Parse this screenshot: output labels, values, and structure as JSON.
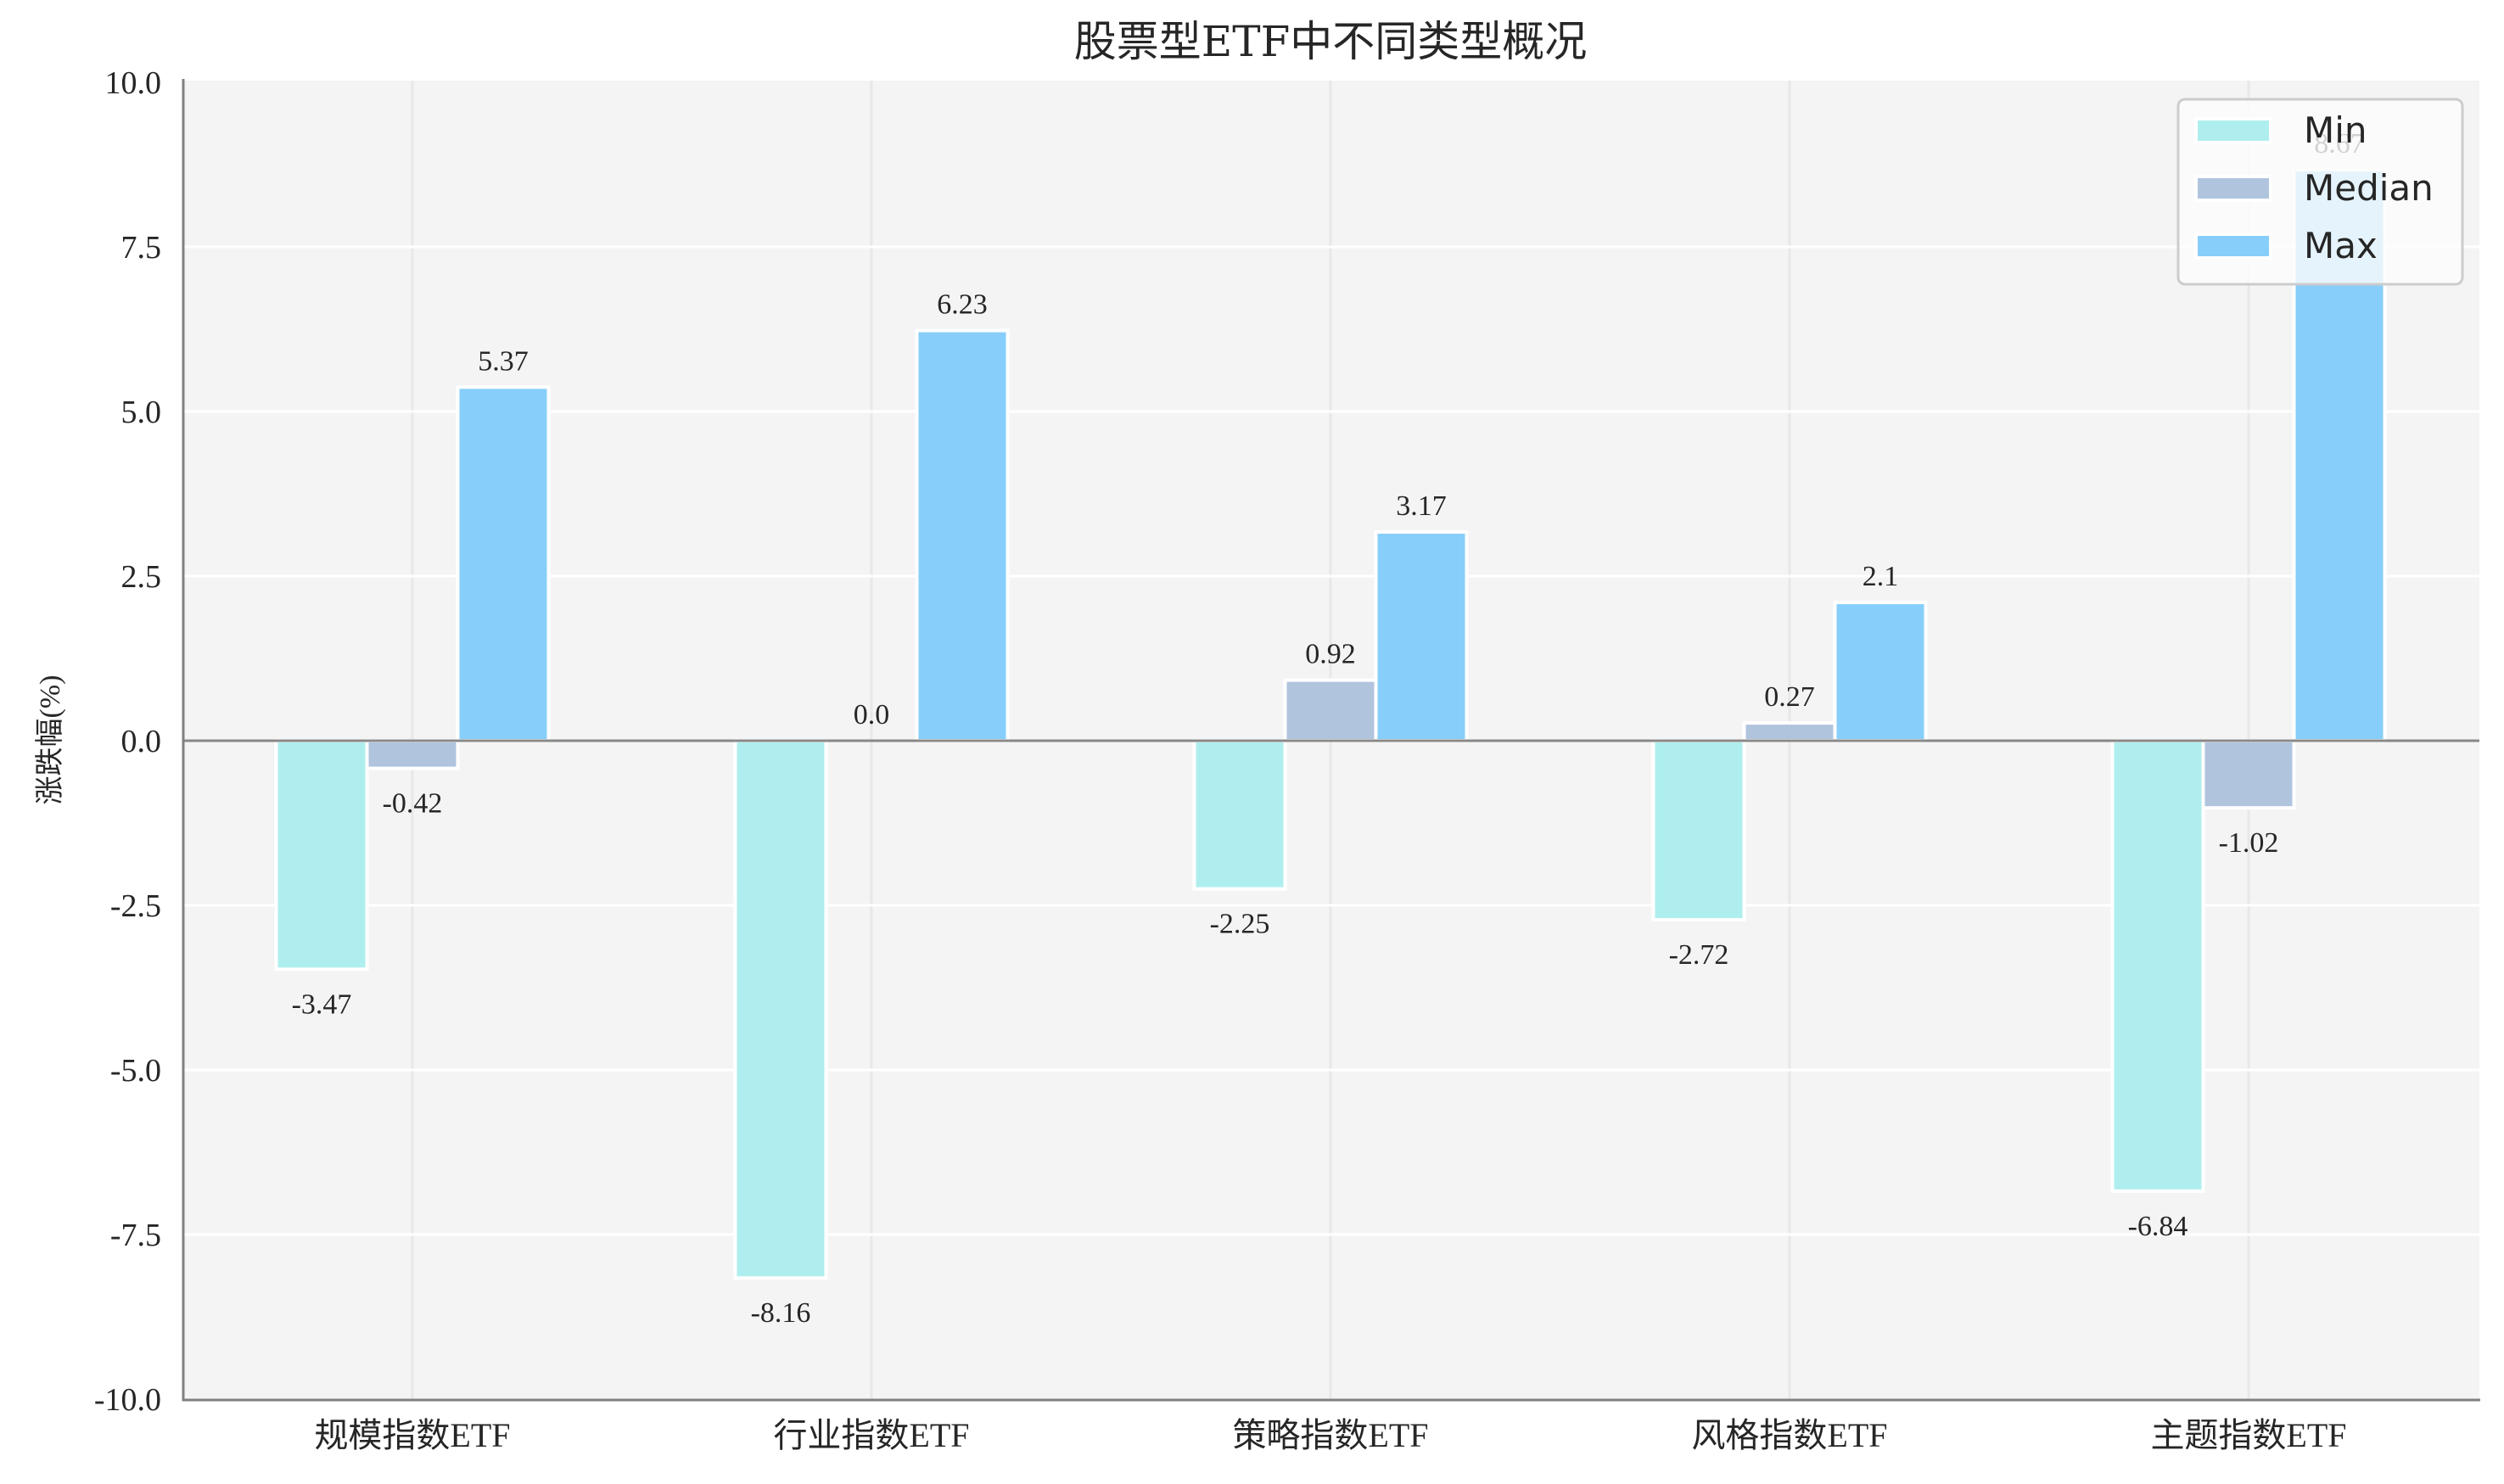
{
  "chart_data": {
    "type": "bar",
    "title": "股票型ETF中不同类型概况",
    "xlabel": "",
    "ylabel": "涨跌幅(%)",
    "ylim": [
      -10.0,
      10.0
    ],
    "yticks": [
      "-10.0",
      "-7.5",
      "-5.0",
      "-2.5",
      "0.0",
      "2.5",
      "5.0",
      "7.5",
      "10.0"
    ],
    "ytick_values": [
      -10,
      -7.5,
      -5,
      -2.5,
      0,
      2.5,
      5,
      7.5,
      10
    ],
    "grid": true,
    "legend_position": "upper right",
    "categories": [
      "规模指数ETF",
      "行业指数ETF",
      "策略指数ETF",
      "风格指数ETF",
      "主题指数ETF"
    ],
    "series": [
      {
        "name": "Min",
        "color": "#AFEEEE",
        "values": [
          -3.47,
          -8.16,
          -2.25,
          -2.72,
          -6.84
        ],
        "labels": [
          "-3.47",
          "-8.16",
          "-2.25",
          "-2.72",
          "-6.84"
        ]
      },
      {
        "name": "Median",
        "color": "#B0C4DE",
        "values": [
          -0.42,
          0.0,
          0.92,
          0.27,
          -1.02
        ],
        "labels": [
          "-0.42",
          "0.0",
          "0.92",
          "0.27",
          "-1.02"
        ]
      },
      {
        "name": "Max",
        "color": "#87CEFA",
        "values": [
          5.37,
          6.23,
          3.17,
          2.1,
          8.67
        ],
        "labels": [
          "5.37",
          "6.23",
          "3.17",
          "2.1",
          "8.67"
        ]
      }
    ]
  },
  "style": {
    "plot_bg": "#F4F4F4",
    "grid_color": "#FFFFFF",
    "vgrid_color": "#E8E8E8",
    "spine_color": "#808080",
    "zero_line_color": "#888888",
    "bar_edge": "#FFFFFF",
    "text_color": "#262626"
  }
}
